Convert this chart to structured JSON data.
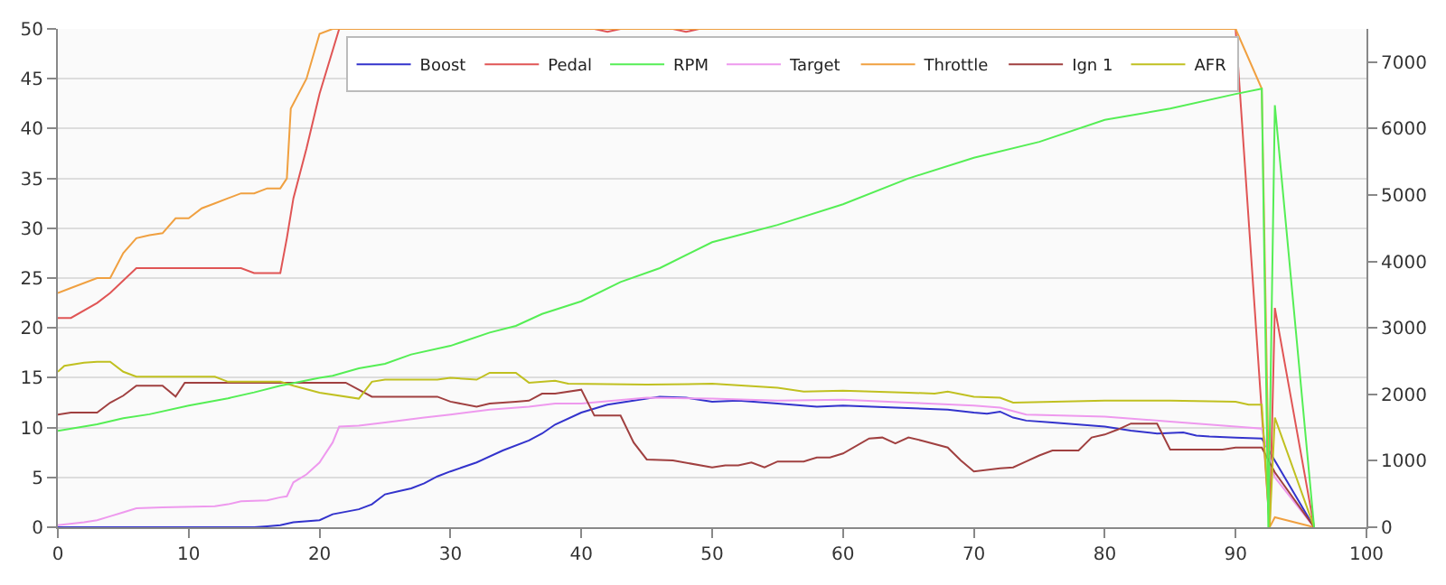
{
  "chart_data": {
    "type": "line",
    "xlim": [
      0,
      100
    ],
    "xticks": [
      0,
      10,
      20,
      30,
      40,
      50,
      60,
      70,
      80,
      90,
      100
    ],
    "ylim": [
      0,
      50
    ],
    "yticks": [
      0,
      5,
      10,
      15,
      20,
      25,
      30,
      35,
      40,
      45,
      50
    ],
    "y2lim": [
      0,
      7500
    ],
    "y2ticks": [
      0,
      1000,
      2000,
      3000,
      4000,
      5000,
      6000,
      7000
    ],
    "grid": "y",
    "legend": "top",
    "marker": "none",
    "line_style": "solid",
    "series": [
      {
        "name": "Boost",
        "color": "#3333cc",
        "x": [
          0,
          15,
          16,
          17,
          18,
          20,
          21,
          23,
          24,
          25,
          26,
          27,
          28,
          29,
          30,
          32,
          34,
          36,
          37,
          38,
          40,
          42,
          44,
          46,
          48,
          50,
          52,
          55,
          58,
          60,
          64,
          68,
          70,
          71,
          72,
          73,
          74,
          76,
          78,
          80,
          82,
          84,
          86,
          87,
          88,
          90,
          92,
          96
        ],
        "values": [
          0,
          0,
          0.1,
          0.2,
          0.5,
          0.7,
          1.3,
          1.8,
          2.3,
          3.3,
          3.6,
          3.9,
          4.4,
          5.1,
          5.6,
          6.5,
          7.7,
          8.7,
          9.4,
          10.3,
          11.5,
          12.3,
          12.7,
          13.1,
          13,
          12.6,
          12.7,
          12.4,
          12.1,
          12.2,
          12,
          11.8,
          11.5,
          11.4,
          11.6,
          11,
          10.7,
          10.5,
          10.3,
          10.1,
          9.7,
          9.4,
          9.5,
          9.2,
          9.1,
          9,
          8.9,
          0
        ]
      },
      {
        "name": "Pedal",
        "color": "#e05555",
        "x": [
          0,
          1,
          3,
          4,
          6,
          14,
          15,
          17,
          17.5,
          18,
          19,
          20,
          21.5,
          41,
          42,
          43,
          47,
          48,
          49,
          90,
          92.6,
          93,
          96
        ],
        "values": [
          21,
          21,
          22.5,
          23.5,
          26,
          26,
          25.5,
          25.5,
          29,
          33,
          38,
          43.5,
          50,
          50,
          49.7,
          50,
          50,
          49.7,
          50,
          50,
          0,
          22,
          0
        ]
      },
      {
        "name": "RPM",
        "color": "#55ee55",
        "axis": "y2",
        "x": [
          0,
          3,
          5,
          7,
          10,
          13,
          15,
          17,
          20,
          21,
          23,
          25,
          27,
          30,
          33,
          35,
          37,
          40,
          43,
          46,
          50,
          55,
          60,
          65,
          70,
          75,
          80,
          85,
          90,
          92,
          92.5,
          93,
          96
        ],
        "values": [
          1450,
          1550,
          1640,
          1700,
          1830,
          1940,
          2030,
          2130,
          2250,
          2280,
          2390,
          2460,
          2600,
          2730,
          2930,
          3030,
          3210,
          3400,
          3690,
          3900,
          4290,
          4550,
          4860,
          5250,
          5560,
          5800,
          6130,
          6300,
          6520,
          6600,
          0,
          6350,
          0
        ]
      },
      {
        "name": "Target",
        "color": "#ee99ee",
        "x": [
          0,
          2,
          3,
          4,
          5,
          6,
          8,
          12,
          13,
          14,
          16,
          17,
          17.5,
          18,
          19,
          20,
          21,
          21.5,
          23,
          25,
          28,
          30,
          33,
          36,
          38,
          40,
          45,
          50,
          55,
          60,
          65,
          70,
          72,
          74,
          80,
          85,
          90,
          92,
          93,
          96
        ],
        "values": [
          0.2,
          0.5,
          0.7,
          1.1,
          1.5,
          1.9,
          2,
          2.1,
          2.3,
          2.6,
          2.7,
          3,
          3.1,
          4.5,
          5.3,
          6.5,
          8.5,
          10.1,
          10.2,
          10.5,
          11,
          11.3,
          11.8,
          12.1,
          12.4,
          12.4,
          13,
          12.9,
          12.7,
          12.8,
          12.5,
          12.2,
          12,
          11.3,
          11.1,
          10.6,
          10.1,
          9.9,
          5,
          0
        ]
      },
      {
        "name": "Throttle",
        "color": "#f0a040",
        "x": [
          0,
          1,
          3,
          4,
          5,
          6,
          7,
          8,
          9,
          10,
          11,
          12,
          13,
          14,
          15,
          16,
          17,
          17.5,
          17.8,
          19,
          20,
          21,
          90,
          92,
          92.6,
          93,
          96
        ],
        "values": [
          23.5,
          24,
          25,
          25,
          27.5,
          29,
          29.3,
          29.5,
          31,
          31,
          32,
          32.5,
          33,
          33.5,
          33.5,
          34,
          34,
          35,
          42,
          45,
          49.5,
          50,
          50,
          44,
          0,
          1,
          0
        ]
      },
      {
        "name": "Ign 1",
        "color": "#a04040",
        "x": [
          0,
          1,
          3,
          4,
          5,
          6,
          8,
          9,
          9.7,
          12,
          22,
          24,
          29,
          30,
          32,
          33,
          35,
          36,
          37,
          38,
          40,
          41,
          43,
          44,
          45,
          47,
          50,
          51,
          52,
          53,
          54,
          55,
          57,
          58,
          59,
          60,
          62,
          63,
          64,
          65,
          66,
          68,
          69,
          70,
          72,
          73,
          74,
          75,
          76,
          78,
          79,
          80,
          81,
          82,
          84,
          85,
          87,
          89,
          90,
          92,
          93,
          96
        ],
        "values": [
          11.3,
          11.5,
          11.5,
          12.5,
          13.2,
          14.2,
          14.2,
          13.1,
          14.5,
          14.5,
          14.5,
          13.1,
          13.1,
          12.6,
          12.1,
          12.4,
          12.6,
          12.7,
          13.4,
          13.4,
          13.8,
          11.2,
          11.2,
          8.5,
          6.8,
          6.7,
          6,
          6.2,
          6.2,
          6.5,
          6,
          6.6,
          6.6,
          7,
          7,
          7.4,
          8.9,
          9,
          8.4,
          9,
          8.7,
          8,
          6.7,
          5.6,
          5.9,
          6,
          6.6,
          7.2,
          7.7,
          7.7,
          9,
          9.3,
          9.8,
          10.4,
          10.4,
          7.8,
          7.8,
          7.8,
          8,
          8,
          5.5,
          0
        ]
      },
      {
        "name": "AFR",
        "color": "#c0c020",
        "x": [
          0,
          0.5,
          2,
          3,
          4,
          5,
          6,
          12,
          13,
          17,
          18,
          20,
          23,
          24,
          25,
          29,
          30,
          32,
          33,
          35,
          36,
          38,
          39,
          45,
          50,
          55,
          57,
          60,
          65,
          67,
          68,
          70,
          72,
          73,
          80,
          85,
          90,
          91,
          92,
          92.6,
          93,
          96
        ],
        "values": [
          15.6,
          16.2,
          16.5,
          16.6,
          16.6,
          15.6,
          15.1,
          15.1,
          14.6,
          14.6,
          14.2,
          13.5,
          12.9,
          14.6,
          14.8,
          14.8,
          15,
          14.8,
          15.5,
          15.5,
          14.5,
          14.7,
          14.4,
          14.3,
          14.4,
          14,
          13.6,
          13.7,
          13.5,
          13.4,
          13.6,
          13.1,
          13,
          12.5,
          12.7,
          12.7,
          12.6,
          12.3,
          12.3,
          0,
          11,
          0
        ]
      }
    ]
  }
}
